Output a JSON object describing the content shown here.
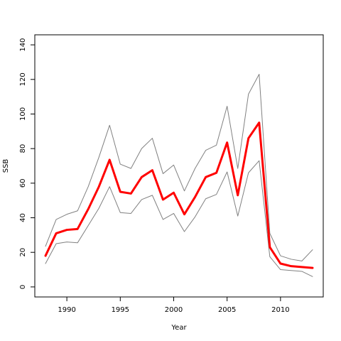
{
  "chart_data": {
    "type": "line",
    "xlabel": "Year",
    "ylabel": "SSB",
    "xlim": [
      1987.0,
      2014.0
    ],
    "ylim": [
      -5.8,
      145.8
    ],
    "x_ticks": [
      1990,
      1995,
      2000,
      2005,
      2010
    ],
    "y_ticks": [
      0,
      20,
      40,
      60,
      80,
      100,
      120,
      140
    ],
    "x_tick_labels": [
      "1990",
      "1995",
      "2000",
      "2005",
      "2010"
    ],
    "y_tick_labels": [
      "0",
      "20",
      "40",
      "60",
      "80",
      "100",
      "120",
      "140"
    ],
    "grid": false,
    "x": [
      1988,
      1989,
      1990,
      1991,
      1992,
      1993,
      1994,
      1995,
      1996,
      1997,
      1998,
      1999,
      2000,
      2001,
      2002,
      2003,
      2004,
      2005,
      2006,
      2007,
      2008,
      2009,
      2010,
      2011,
      2012,
      2013
    ],
    "series": [
      {
        "role": "estimate",
        "color": "#ff0000",
        "values": [
          18,
          31,
          33,
          33.5,
          45,
          58,
          73.5,
          55,
          54,
          63.5,
          67.5,
          50.5,
          54.5,
          42,
          52,
          63.5,
          66,
          83.5,
          53,
          86,
          95,
          23,
          13.5,
          12,
          11.5,
          11
        ]
      },
      {
        "role": "upper",
        "color": "#808080",
        "values": [
          23.5,
          39,
          42,
          44,
          58,
          75,
          93.5,
          71,
          68.5,
          80,
          86,
          65.5,
          70.5,
          55.5,
          68.5,
          79,
          82,
          104.5,
          68.5,
          111.5,
          123,
          31,
          18,
          16,
          15,
          21.5
        ]
      },
      {
        "role": "lower",
        "color": "#808080",
        "values": [
          13.5,
          25,
          26,
          25.5,
          35.5,
          45.5,
          58,
          43,
          42.5,
          50.5,
          53,
          39,
          42.5,
          32,
          40.5,
          51,
          53.5,
          66.5,
          41,
          66,
          73,
          17.5,
          10,
          9.5,
          9,
          6
        ]
      }
    ]
  }
}
